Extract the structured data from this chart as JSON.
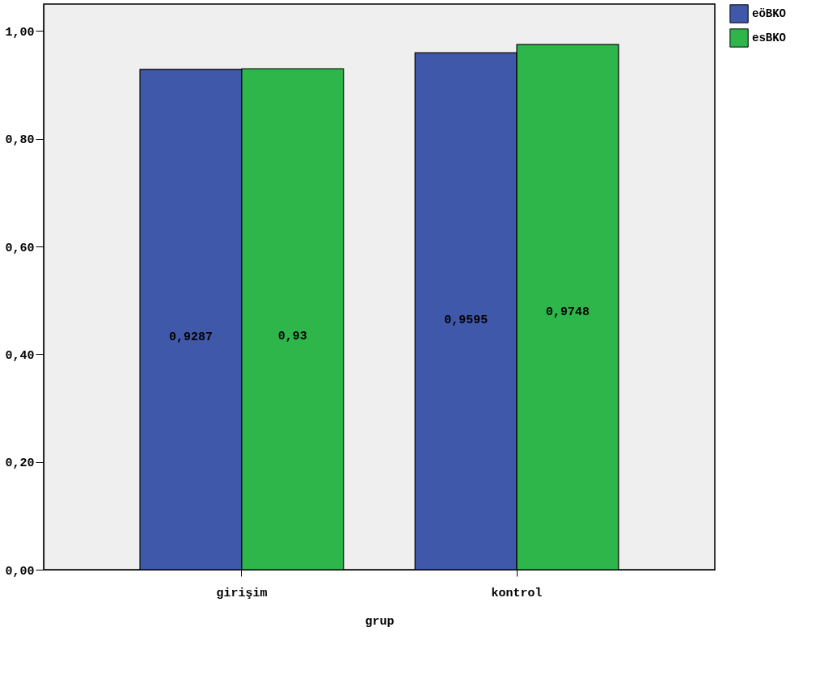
{
  "chart_data": {
    "type": "bar",
    "xlabel": "grup",
    "categories": [
      "girişim",
      "kontrol"
    ],
    "series": [
      {
        "name": "eöBKO",
        "color": "#3f58aa",
        "values": [
          0.9287,
          0.9595
        ],
        "value_labels": [
          "0,9287",
          "0,9595"
        ]
      },
      {
        "name": "esBKO",
        "color": "#2eb64a",
        "values": [
          0.93,
          0.9748
        ],
        "value_labels": [
          "0,93",
          "0,9748"
        ]
      }
    ],
    "ylim": [
      0,
      1.05
    ],
    "yticks": [
      {
        "value": 0,
        "label": "0,00"
      },
      {
        "value": 0.2,
        "label": "0,20"
      },
      {
        "value": 0.4,
        "label": "0,40"
      },
      {
        "value": 0.6,
        "label": "0,60"
      },
      {
        "value": 0.8,
        "label": "0,80"
      },
      {
        "value": 1.0,
        "label": "1,00"
      }
    ],
    "grid": false,
    "legend": "top right"
  }
}
